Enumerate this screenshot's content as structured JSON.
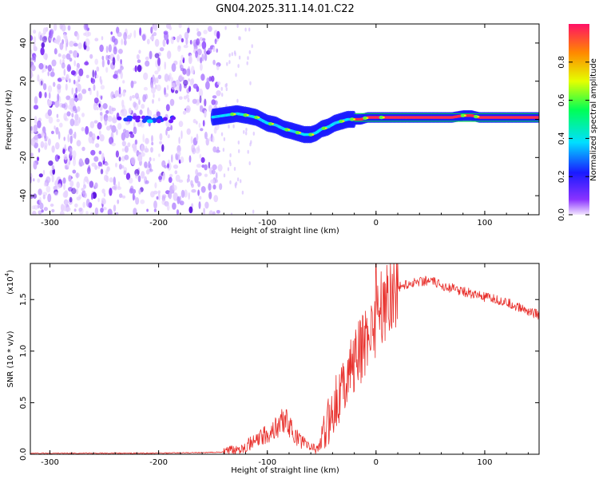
{
  "title": "GN04.2025.311.14.01.C22",
  "chart_data": [
    {
      "type": "heatmap",
      "name": "spectrogram",
      "xlabel": "Height of straight line (km)",
      "ylabel": "Frequency (Hz)",
      "xlim": [
        -318,
        150
      ],
      "ylim": [
        -50,
        50
      ],
      "xticks": [
        -300,
        -200,
        -100,
        0,
        100
      ],
      "xtick_labels": [
        "-300",
        "-200",
        "-100",
        "0",
        "100"
      ],
      "yticks": [
        -40,
        -20,
        0,
        20,
        40
      ],
      "ytick_labels": [
        "-40",
        "-20",
        "0",
        "20",
        "40"
      ],
      "colorbar": {
        "label": "Normalized spectral amplitude",
        "range": [
          0,
          1
        ],
        "ticks": [
          0.0,
          0.2,
          0.4,
          0.6,
          0.8
        ],
        "tick_labels": [
          "0.0",
          "0.2",
          "0.4",
          "0.6",
          "0.8"
        ]
      },
      "noise_region_x": [
        -318,
        -143
      ],
      "signal_track": {
        "x": [
          -152,
          -140,
          -128,
          -118,
          -110,
          -100,
          -92,
          -85,
          -78,
          -72,
          -66,
          -60,
          -55,
          -50,
          -44,
          -38,
          -32,
          -26,
          -20,
          -14,
          -8,
          -2,
          5,
          15,
          30,
          50,
          70,
          80,
          88,
          95,
          102,
          110,
          125,
          150
        ],
        "f": [
          1,
          2,
          3,
          2,
          1,
          -2,
          -3,
          -5,
          -6,
          -7,
          -8,
          -8,
          -7,
          -5,
          -4,
          -2,
          -1,
          0,
          0,
          0,
          1,
          1,
          1,
          1,
          1,
          1,
          1,
          2,
          2,
          1,
          1,
          1,
          1,
          1
        ]
      }
    },
    {
      "type": "line",
      "name": "snr",
      "xlabel": "Height of straight line (km)",
      "ylabel": "SNR (10 * v/v)",
      "multiplier_label": "(x10",
      "multiplier_exp": "4",
      "multiplier_close": ")",
      "xlim": [
        -318,
        150
      ],
      "ylim": [
        0,
        1.85
      ],
      "xticks": [
        -300,
        -200,
        -100,
        0,
        100
      ],
      "xtick_labels": [
        "-300",
        "-200",
        "-100",
        "0",
        "100"
      ],
      "yticks": [
        0.0,
        0.5,
        1.0,
        1.5
      ],
      "ytick_labels": [
        "0.0",
        "0.5",
        "1.0",
        "1.5"
      ],
      "color": "#e8302c",
      "envelope": {
        "x": [
          -318,
          -200,
          -140,
          -130,
          -120,
          -110,
          -100,
          -90,
          -85,
          -80,
          -75,
          -70,
          -65,
          -60,
          -55,
          -50,
          -45,
          -40,
          -35,
          -30,
          -25,
          -20,
          -15,
          -10,
          -5,
          0,
          5,
          10,
          15,
          20,
          30,
          40,
          50,
          60,
          70,
          80,
          90,
          100,
          110,
          120,
          130,
          140,
          150
        ],
        "y": [
          0.01,
          0.01,
          0.02,
          0.04,
          0.08,
          0.13,
          0.2,
          0.27,
          0.35,
          0.28,
          0.18,
          0.14,
          0.1,
          0.07,
          0.06,
          0.1,
          0.28,
          0.45,
          0.55,
          0.68,
          0.8,
          0.9,
          0.98,
          1.1,
          1.22,
          1.32,
          1.42,
          1.52,
          1.58,
          1.62,
          1.65,
          1.68,
          1.68,
          1.64,
          1.61,
          1.58,
          1.55,
          1.52,
          1.5,
          1.47,
          1.43,
          1.39,
          1.35
        ]
      },
      "spike": {
        "x": 0,
        "y": 1.85
      }
    }
  ]
}
